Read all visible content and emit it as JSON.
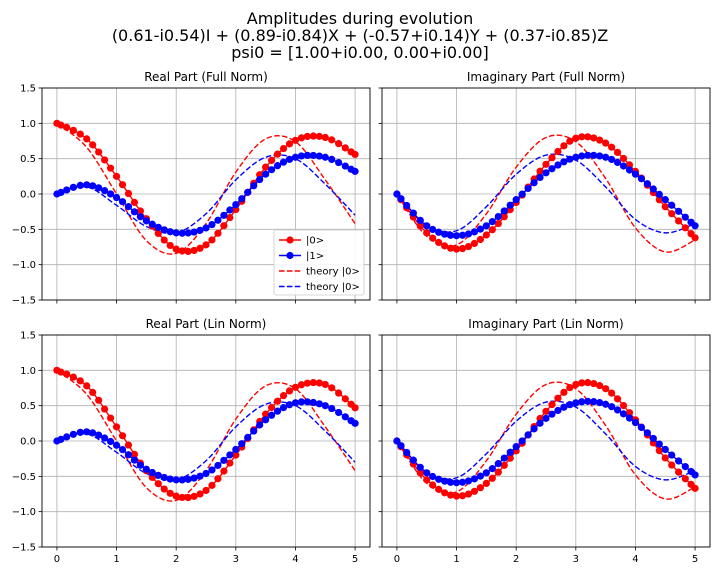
{
  "figure": {
    "title_lines": [
      "Amplitudes during evolution",
      "(0.61-i0.54)I + (0.89-i0.84)X + (-0.57+i0.14)Y + (0.37-i0.85)Z",
      "psi0 = [1.00+i0.00, 0.00+i0.00]"
    ]
  },
  "colors": {
    "state0": "#ff0000",
    "state1": "#0000ff",
    "grid": "#b0b0b0"
  },
  "legend": {
    "location": "center-right of top-left subplot",
    "entries": [
      {
        "label": "|0>",
        "style": "line-marker",
        "color": "#ff0000"
      },
      {
        "label": "|1>",
        "style": "line-marker",
        "color": "#0000ff"
      },
      {
        "label": "theory |0>",
        "style": "dashed",
        "color": "#ff0000"
      },
      {
        "label": "theory |0>",
        "style": "dashed",
        "color": "#0000ff"
      }
    ]
  },
  "chart_data": [
    {
      "type": "line",
      "title": "Real Part (Full Norm)",
      "xlim": [
        -0.25,
        5.25
      ],
      "ylim": [
        -1.5,
        1.5
      ],
      "xticks": [
        "0",
        "1",
        "2",
        "3",
        "4",
        "5"
      ],
      "yticks": [
        "1.5",
        "1.0",
        "0.5",
        "0.0",
        "−0.5",
        "−1.0",
        "−1.5"
      ],
      "show_xticklabels": false,
      "show_yticklabels": true,
      "grid": true,
      "x": [
        0,
        0.5,
        1,
        1.5,
        2,
        2.5,
        3,
        3.5,
        4,
        4.5,
        5
      ],
      "series": [
        {
          "name": "|0>",
          "style": "marker",
          "color": "#ff0000",
          "values": [
            1.0,
            0.78,
            0.25,
            -0.35,
            -0.78,
            -0.72,
            -0.22,
            0.38,
            0.76,
            0.8,
            0.56
          ]
        },
        {
          "name": "|1>",
          "style": "marker",
          "color": "#0000ff",
          "values": [
            0.0,
            0.13,
            -0.05,
            -0.38,
            -0.55,
            -0.48,
            -0.15,
            0.28,
            0.52,
            0.52,
            0.32
          ]
        },
        {
          "name": "theory |0>",
          "style": "dashed",
          "color": "#ff0000",
          "values": [
            1.0,
            0.66,
            0.0,
            -0.66,
            -0.84,
            -0.42,
            0.31,
            0.78,
            0.74,
            0.2,
            -0.42
          ]
        },
        {
          "name": "theory |0>",
          "style": "dashed",
          "color": "#0000ff",
          "values": [
            0.0,
            0.1,
            -0.16,
            -0.46,
            -0.55,
            -0.28,
            0.2,
            0.52,
            0.5,
            0.14,
            -0.3
          ]
        }
      ]
    },
    {
      "type": "line",
      "title": "Imaginary Part (Full Norm)",
      "xlim": [
        -0.25,
        5.25
      ],
      "ylim": [
        -1.5,
        1.5
      ],
      "xticks": [
        "0",
        "1",
        "2",
        "3",
        "4",
        "5"
      ],
      "yticks": [
        "1.5",
        "1.0",
        "0.5",
        "0.0",
        "−0.5",
        "−1.0",
        "−1.5"
      ],
      "show_xticklabels": false,
      "show_yticklabels": false,
      "grid": true,
      "x": [
        0,
        0.5,
        1,
        1.5,
        2,
        2.5,
        3,
        3.5,
        4,
        4.5,
        5
      ],
      "series": [
        {
          "name": "|0>",
          "style": "marker",
          "color": "#ff0000",
          "values": [
            0.0,
            -0.55,
            -0.78,
            -0.58,
            -0.12,
            0.42,
            0.79,
            0.72,
            0.32,
            -0.18,
            -0.62
          ]
        },
        {
          "name": "|1>",
          "style": "marker",
          "color": "#0000ff",
          "values": [
            0.0,
            -0.45,
            -0.59,
            -0.45,
            -0.08,
            0.3,
            0.52,
            0.52,
            0.28,
            -0.08,
            -0.45
          ]
        },
        {
          "name": "theory |0>",
          "style": "dashed",
          "color": "#ff0000",
          "values": [
            0.0,
            -0.6,
            -0.72,
            -0.28,
            0.38,
            0.8,
            0.74,
            0.22,
            -0.48,
            -0.82,
            -0.65
          ]
        },
        {
          "name": "theory |0>",
          "style": "dashed",
          "color": "#0000ff",
          "values": [
            0.0,
            -0.44,
            -0.52,
            -0.18,
            0.28,
            0.55,
            0.48,
            0.1,
            -0.36,
            -0.55,
            -0.42
          ]
        }
      ]
    },
    {
      "type": "line",
      "title": "Real Part (Lin Norm)",
      "xlim": [
        -0.25,
        5.25
      ],
      "ylim": [
        -1.5,
        1.5
      ],
      "xticks": [
        "0",
        "1",
        "2",
        "3",
        "4",
        "5"
      ],
      "yticks": [
        "1.5",
        "1.0",
        "0.5",
        "0.0",
        "−0.5",
        "−1.0",
        "−1.5"
      ],
      "show_xticklabels": true,
      "show_yticklabels": true,
      "grid": true,
      "x": [
        0,
        0.5,
        1,
        1.5,
        2,
        2.5,
        3,
        3.5,
        4,
        4.5,
        5
      ],
      "series": [
        {
          "name": "|0>",
          "style": "marker",
          "color": "#ff0000",
          "values": [
            1.0,
            0.78,
            0.2,
            -0.42,
            -0.78,
            -0.7,
            -0.2,
            0.38,
            0.76,
            0.8,
            0.47
          ]
        },
        {
          "name": "|1>",
          "style": "marker",
          "color": "#0000ff",
          "values": [
            0.0,
            0.13,
            -0.06,
            -0.4,
            -0.55,
            -0.46,
            -0.12,
            0.3,
            0.54,
            0.5,
            0.25
          ]
        },
        {
          "name": "theory |0>",
          "style": "dashed",
          "color": "#ff0000",
          "values": [
            1.0,
            0.66,
            0.0,
            -0.66,
            -0.84,
            -0.42,
            0.31,
            0.78,
            0.74,
            0.2,
            -0.42
          ]
        },
        {
          "name": "theory |0>",
          "style": "dashed",
          "color": "#0000ff",
          "values": [
            0.0,
            0.1,
            -0.16,
            -0.46,
            -0.55,
            -0.28,
            0.2,
            0.52,
            0.5,
            0.14,
            -0.3
          ]
        }
      ]
    },
    {
      "type": "line",
      "title": "Imaginary Part (Lin Norm)",
      "xlim": [
        -0.25,
        5.25
      ],
      "ylim": [
        -1.5,
        1.5
      ],
      "xticks": [
        "0",
        "1",
        "2",
        "3",
        "4",
        "5"
      ],
      "yticks": [
        "1.5",
        "1.0",
        "0.5",
        "0.0",
        "−0.5",
        "−1.0",
        "−1.5"
      ],
      "show_xticklabels": true,
      "show_yticklabels": false,
      "grid": true,
      "x": [
        0,
        0.5,
        1,
        1.5,
        2,
        2.5,
        3,
        3.5,
        4,
        4.5,
        5
      ],
      "series": [
        {
          "name": "|0>",
          "style": "marker",
          "color": "#ff0000",
          "values": [
            0.0,
            -0.55,
            -0.78,
            -0.6,
            -0.14,
            0.42,
            0.8,
            0.74,
            0.3,
            -0.24,
            -0.67
          ]
        },
        {
          "name": "|1>",
          "style": "marker",
          "color": "#0000ff",
          "values": [
            0.0,
            -0.45,
            -0.59,
            -0.45,
            -0.08,
            0.32,
            0.54,
            0.52,
            0.26,
            -0.12,
            -0.48
          ]
        },
        {
          "name": "theory |0>",
          "style": "dashed",
          "color": "#ff0000",
          "values": [
            0.0,
            -0.6,
            -0.72,
            -0.28,
            0.38,
            0.8,
            0.74,
            0.22,
            -0.48,
            -0.82,
            -0.65
          ]
        },
        {
          "name": "theory |0>",
          "style": "dashed",
          "color": "#0000ff",
          "values": [
            0.0,
            -0.44,
            -0.52,
            -0.18,
            0.28,
            0.55,
            0.48,
            0.1,
            -0.36,
            -0.55,
            -0.42
          ]
        }
      ]
    }
  ]
}
